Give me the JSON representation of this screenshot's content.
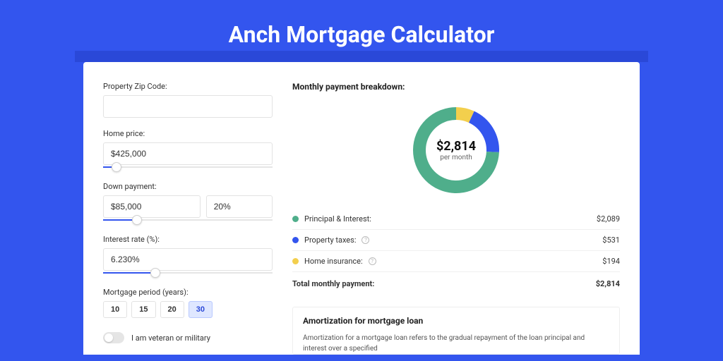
{
  "page": {
    "title": "Anch Mortgage Calculator",
    "colors": {
      "pageBg": "#3355ee",
      "bandBg": "#2a48d8",
      "cardBg": "#ffffff",
      "accent": "#3355ee"
    }
  },
  "form": {
    "zip": {
      "label": "Property Zip Code:",
      "value": ""
    },
    "homePrice": {
      "label": "Home price:",
      "value": "$425,000",
      "sliderPercent": 8
    },
    "downPayment": {
      "label": "Down payment:",
      "amount": "$85,000",
      "percent": "20%",
      "sliderPercent": 20
    },
    "interestRate": {
      "label": "Interest rate (%):",
      "value": "6.230%",
      "sliderPercent": 31
    },
    "period": {
      "label": "Mortgage period (years):",
      "options": [
        "10",
        "15",
        "20",
        "30"
      ],
      "selected": "30"
    },
    "veteran": {
      "label": "I am veteran or military",
      "checked": false
    }
  },
  "breakdown": {
    "title": "Monthly payment breakdown:",
    "donut": {
      "centerAmount": "$2,814",
      "centerSub": "per month",
      "slices": [
        {
          "label": "Principal & Interest:",
          "amount": "$2,089",
          "value": 2089,
          "color": "#4fae8b",
          "hasInfo": false
        },
        {
          "label": "Property taxes:",
          "amount": "$531",
          "value": 531,
          "color": "#3355ee",
          "hasInfo": true
        },
        {
          "label": "Home insurance:",
          "amount": "$194",
          "value": 194,
          "color": "#f3cf4d",
          "hasInfo": true
        }
      ],
      "ringBg": "#ffffff",
      "strokeWidth": 18
    },
    "totalLabel": "Total monthly payment:",
    "totalAmount": "$2,814"
  },
  "amortization": {
    "title": "Amortization for mortgage loan",
    "text": "Amortization for a mortgage loan refers to the gradual repayment of the loan principal and interest over a specified"
  }
}
